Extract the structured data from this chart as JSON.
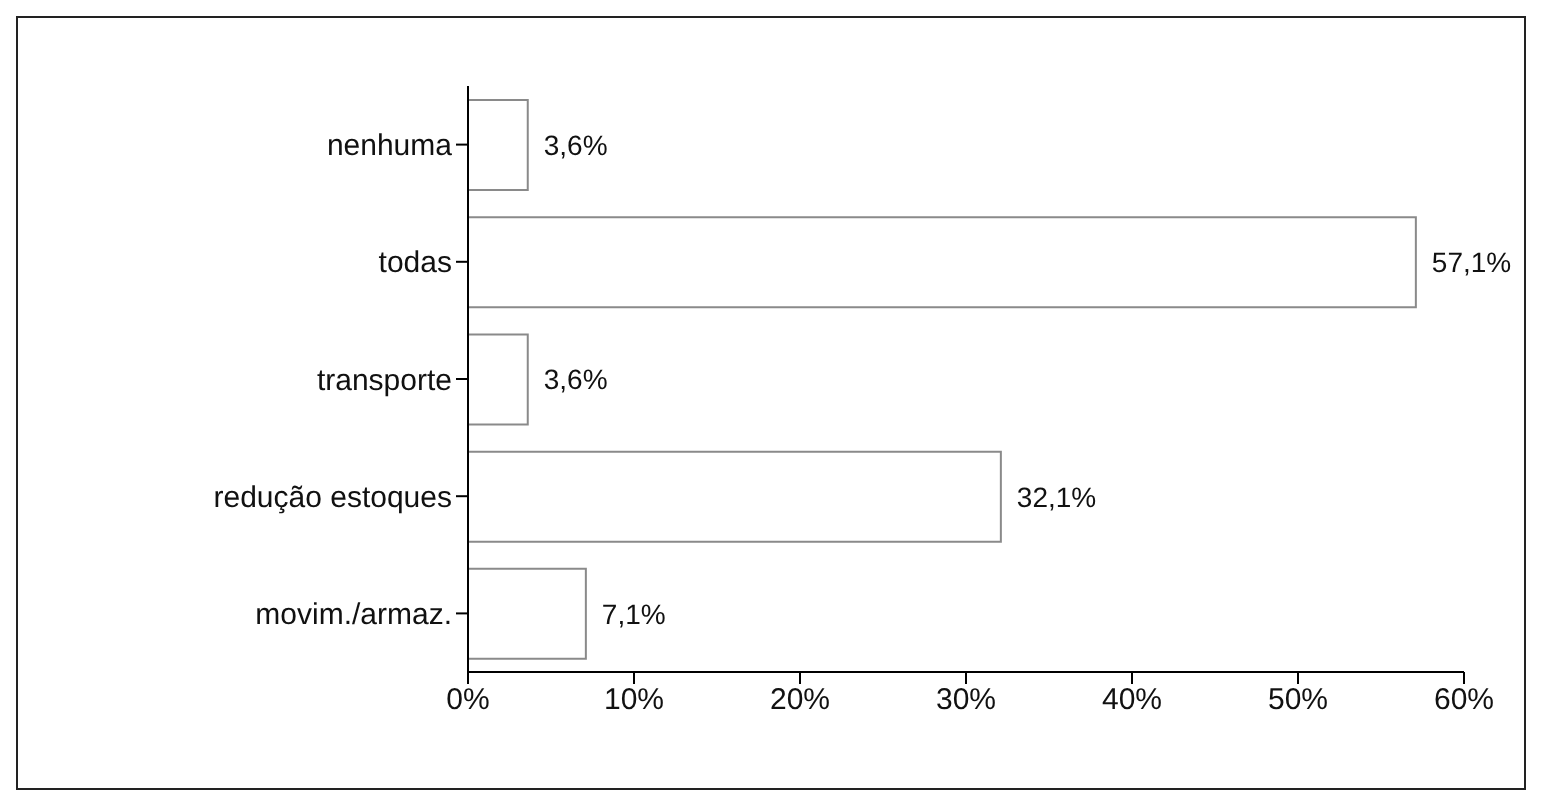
{
  "chart_data": {
    "type": "bar",
    "orientation": "horizontal",
    "categories": [
      "nenhuma",
      "todas",
      "transporte",
      "redução estoques",
      "movim./armaz."
    ],
    "values": [
      3.6,
      57.1,
      3.6,
      32.1,
      7.1
    ],
    "value_labels": [
      "3,6%",
      "57,1%",
      "3,6%",
      "32,1%",
      "7,1%"
    ],
    "color": "#ffffff",
    "xlim": [
      0,
      60
    ],
    "xticks": [
      {
        "value": 0,
        "label": "0%"
      },
      {
        "value": 10,
        "label": "10%"
      },
      {
        "value": 20,
        "label": "20%"
      },
      {
        "value": 30,
        "label": "30%"
      },
      {
        "value": 40,
        "label": "40%"
      },
      {
        "value": 50,
        "label": "50%"
      },
      {
        "value": 60,
        "label": "60%"
      }
    ],
    "grid": false,
    "legend": false
  }
}
